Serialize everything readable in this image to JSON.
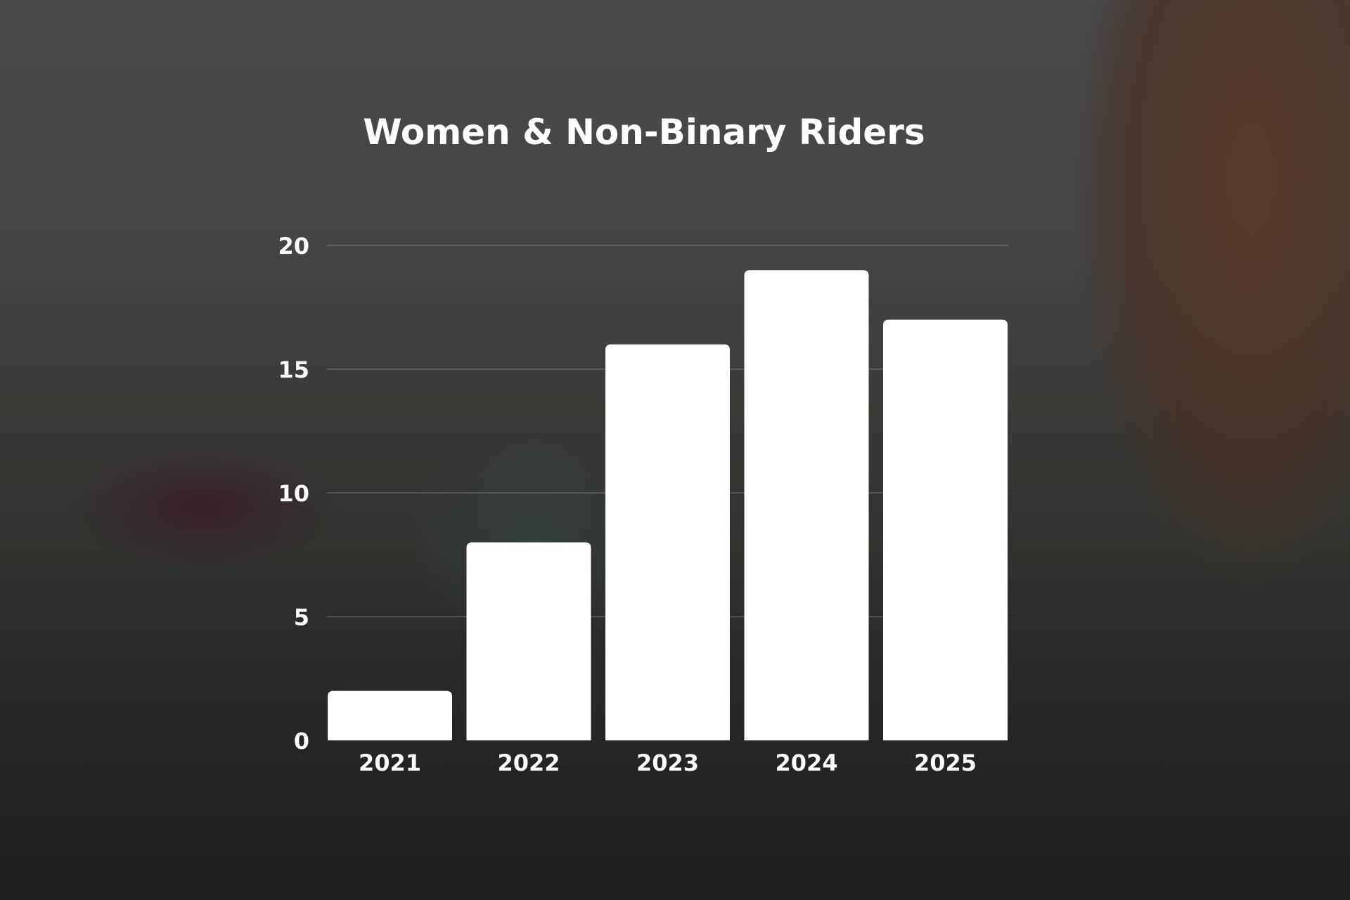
{
  "chart_data": {
    "type": "bar",
    "title": "Women & Non-Binary Riders",
    "categories": [
      "2021",
      "2022",
      "2023",
      "2024",
      "2025"
    ],
    "values": [
      2,
      8,
      16,
      19,
      17
    ],
    "ylim": [
      0,
      20
    ],
    "yticks": [
      0,
      5,
      10,
      15,
      20
    ],
    "xlabel": "",
    "ylabel": "",
    "grid": true,
    "bar_color": "#ffffff",
    "text_color": "#ffffff"
  }
}
